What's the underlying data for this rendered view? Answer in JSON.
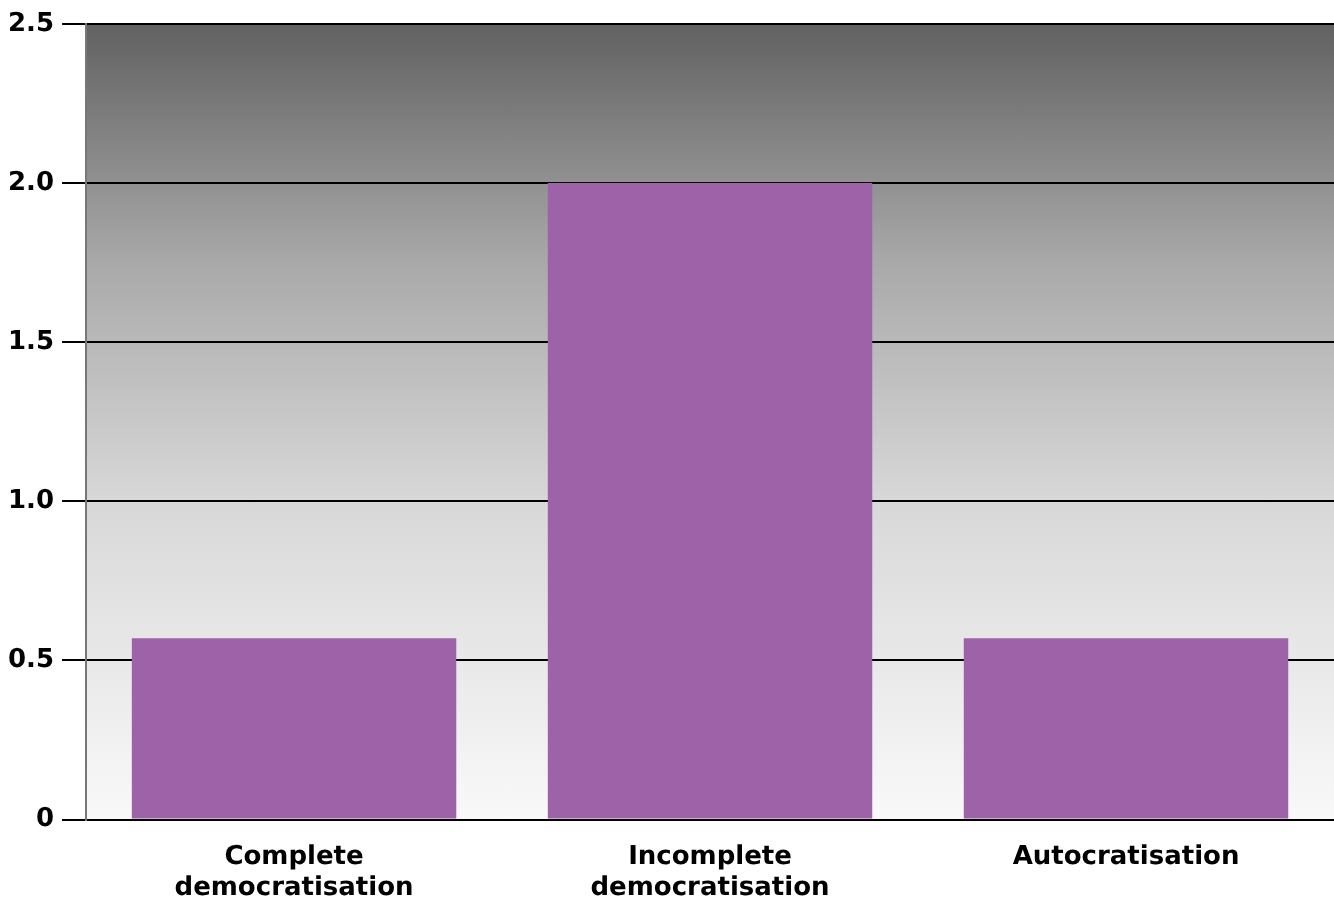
{
  "chart_data": {
    "type": "bar",
    "categories": [
      "Complete democratisation",
      "Incomplete democratisation",
      "Autocratisation"
    ],
    "values": [
      0.57,
      2.0,
      0.57
    ],
    "color": "#9e62a8",
    "ylim": [
      0,
      2.5
    ],
    "yticks": [
      {
        "value": 0,
        "label": "0"
      },
      {
        "value": 0.5,
        "label": "0.5"
      },
      {
        "value": 1,
        "label": "1.0"
      },
      {
        "value": 1.5,
        "label": "1.5"
      },
      {
        "value": 2,
        "label": "2.0"
      },
      {
        "value": 2.5,
        "label": "2.5"
      }
    ],
    "grid": "y"
  }
}
